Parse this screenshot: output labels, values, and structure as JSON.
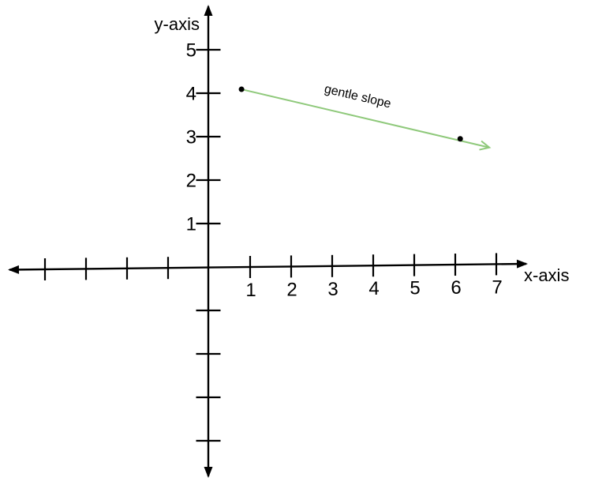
{
  "chart_data": {
    "type": "line",
    "title": "",
    "grid": false,
    "legend": "none",
    "axis_color": "#000000",
    "text_color": "#000000",
    "x_axis": {
      "label": "x-axis",
      "tick_labels": [
        "1",
        "2",
        "3",
        "4",
        "5",
        "6",
        "7"
      ],
      "unlabeled_negative_ticks": 4,
      "arrows": "both-ends",
      "range_shown": [
        -4.8,
        7.8
      ]
    },
    "y_axis": {
      "label": "y-axis",
      "tick_labels": [
        "1",
        "2",
        "3",
        "4",
        "5"
      ],
      "unlabeled_negative_ticks": 4,
      "arrows": "both-ends",
      "range_shown": [
        -4.9,
        6.0
      ]
    },
    "series": [
      {
        "name": "gentle slope",
        "label": "gentle slope",
        "color": "#8FC97B",
        "point_color": "#000000",
        "points": [
          [
            0.79,
            4.09
          ],
          [
            6.12,
            2.95
          ]
        ],
        "arrow_tip": [
          6.83,
          2.75
        ],
        "label_at": [
          3.6,
          3.84
        ],
        "label_rotation_deg": 13.2
      }
    ]
  }
}
